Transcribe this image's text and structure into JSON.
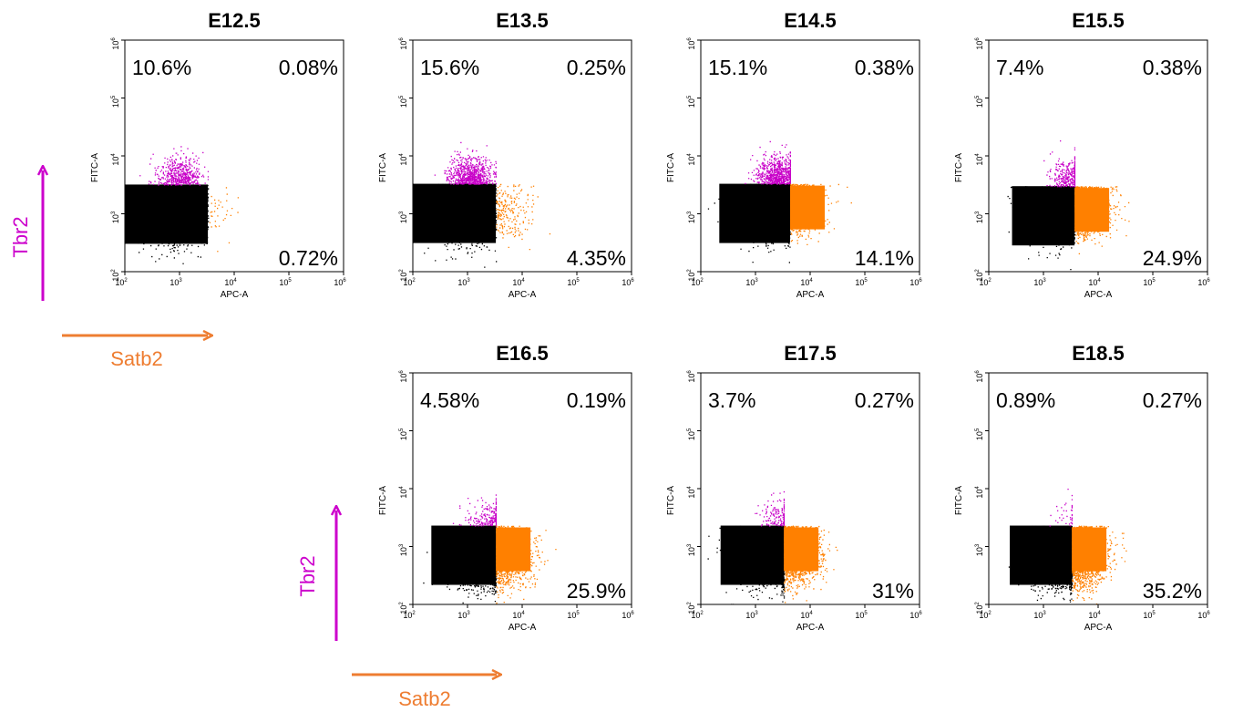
{
  "colors": {
    "tbr2_magenta": "#c800c8",
    "satb2_orange": "#ff8000",
    "double_negative": "#000000",
    "tbr2_arrow": "#cc00cc",
    "satb2_arrow": "#ee7d31"
  },
  "marker_labels": [
    {
      "tbr2": "Tbr2",
      "satb2": "Satb2"
    },
    {
      "tbr2": "Tbr2",
      "satb2": "Satb2"
    }
  ],
  "chart_data": {
    "type": "scatter",
    "x_axis": {
      "label": "APC-A",
      "scale": "log",
      "range": [
        100,
        1000000
      ],
      "ticks": [
        {
          "base": "10",
          "exp": "2"
        },
        {
          "base": "10",
          "exp": "3"
        },
        {
          "base": "10",
          "exp": "4"
        },
        {
          "base": "10",
          "exp": "5"
        },
        {
          "base": "10",
          "exp": "6"
        }
      ]
    },
    "y_axis": {
      "label": "FITC-A",
      "scale": "log",
      "range": [
        100,
        1000000
      ],
      "ticks": [
        {
          "base": "10",
          "exp": "2"
        },
        {
          "base": "10",
          "exp": "3"
        },
        {
          "base": "10",
          "exp": "4"
        },
        {
          "base": "10",
          "exp": "5"
        },
        {
          "base": "10",
          "exp": "6"
        }
      ]
    },
    "panels": [
      {
        "title": "E12.5",
        "gate_x": 3300,
        "gate_y": 3200,
        "q_upper_left": "10.6%",
        "q_upper_right": "0.08%",
        "q_lower_right": "0.72%",
        "upper_left_frac": 0.106,
        "upper_right_frac": 0.0008,
        "lower_right_frac": 0.0072,
        "center_x": 700,
        "center_y": 1200
      },
      {
        "title": "E13.5",
        "gate_x": 3300,
        "gate_y": 3300,
        "q_upper_left": "15.6%",
        "q_upper_right": "0.25%",
        "q_lower_right": "4.35%",
        "upper_left_frac": 0.156,
        "upper_right_frac": 0.0025,
        "lower_right_frac": 0.0435,
        "center_x": 800,
        "center_y": 1200
      },
      {
        "title": "E14.5",
        "gate_x": 4300,
        "gate_y": 3300,
        "q_upper_left": "15.1%",
        "q_upper_right": "0.38%",
        "q_lower_right": "14.1%",
        "upper_left_frac": 0.151,
        "upper_right_frac": 0.0038,
        "lower_right_frac": 0.141,
        "center_x": 1800,
        "center_y": 1300
      },
      {
        "title": "E15.5",
        "gate_x": 3700,
        "gate_y": 3000,
        "q_upper_left": "7.4%",
        "q_upper_right": "0.38%",
        "q_lower_right": "24.9%",
        "upper_left_frac": 0.074,
        "upper_right_frac": 0.0038,
        "lower_right_frac": 0.249,
        "center_x": 2200,
        "center_y": 1300
      },
      {
        "title": "E16.5",
        "gate_x": 3300,
        "gate_y": 2300,
        "q_upper_left": "4.58%",
        "q_upper_right": "0.19%",
        "q_lower_right": "25.9%",
        "upper_left_frac": 0.0458,
        "upper_right_frac": 0.0019,
        "lower_right_frac": 0.259,
        "center_x": 1800,
        "center_y": 700
      },
      {
        "title": "E17.5",
        "gate_x": 3300,
        "gate_y": 2300,
        "q_upper_left": "3.7%",
        "q_upper_right": "0.27%",
        "q_lower_right": "31%",
        "upper_left_frac": 0.037,
        "upper_right_frac": 0.0027,
        "lower_right_frac": 0.31,
        "center_x": 1900,
        "center_y": 750
      },
      {
        "title": "E18.5",
        "gate_x": 3300,
        "gate_y": 2300,
        "q_upper_left": "0.89%",
        "q_upper_right": "0.27%",
        "q_lower_right": "35.2%",
        "upper_left_frac": 0.0089,
        "upper_right_frac": 0.0027,
        "lower_right_frac": 0.352,
        "center_x": 2000,
        "center_y": 700
      }
    ]
  }
}
